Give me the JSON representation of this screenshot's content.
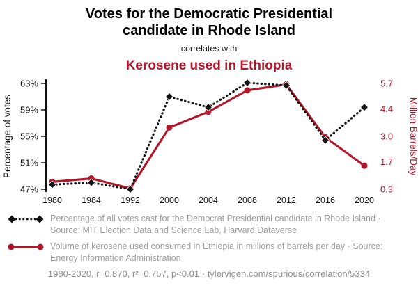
{
  "header": {
    "title_lines": [
      "Votes for the Democratic Presidential",
      "candidate in Rhode Island"
    ],
    "connector": "correlates with",
    "subtitle": "Kerosene used in Ethiopia"
  },
  "chart_data": {
    "type": "line",
    "categories": [
      "1980",
      "1984",
      "1992",
      "2000",
      "2004",
      "2008",
      "2012",
      "2016",
      "2020"
    ],
    "series": [
      {
        "name": "Percentage of all votes cast for the Democrat Presidential candidate in Rhode Island",
        "values": [
          47.7,
          48.0,
          47.0,
          61.0,
          59.4,
          63.1,
          62.7,
          54.4,
          59.4
        ],
        "axis": "left",
        "color": "#111111",
        "line_style": "dotted",
        "marker": "diamond"
      },
      {
        "name": "Volume of kerosene used consumed in Ethiopia in millions of barrels per day",
        "values": [
          0.68,
          0.85,
          0.34,
          3.45,
          4.25,
          5.35,
          5.65,
          2.95,
          1.5
        ],
        "axis": "right",
        "color": "#b2172b",
        "line_style": "solid",
        "marker": "circle"
      }
    ],
    "left_axis": {
      "label": "Percentage of votes",
      "tick_labels": [
        "63%",
        "59%",
        "55%",
        "51%",
        "47%"
      ],
      "tick_values": [
        63,
        59,
        55,
        51,
        47
      ],
      "range": [
        47,
        63
      ],
      "color": "#111111"
    },
    "right_axis": {
      "label": "Million Barrels/Day",
      "tick_labels": [
        "5.7",
        "4.4",
        "3.0",
        "1.7",
        "0.3"
      ],
      "tick_values": [
        5.7,
        4.4,
        3.0,
        1.7,
        0.3
      ],
      "range": [
        0.3,
        5.7
      ],
      "color": "#b2172b"
    },
    "grid": false,
    "legend_position": "bottom"
  },
  "legend": {
    "items": [
      {
        "label": "Percentage of all votes cast for the Democrat Presidential candidate in Rhode Island · Source: MIT Election Data and Science Lab, Harvard Dataverse",
        "marker": "black-diamond-dotted-line"
      },
      {
        "label": "Volume of kerosene used consumed in Ethiopia in millions of barrels per day · Source: Energy Information Administration",
        "marker": "red-circle-solid-line"
      }
    ]
  },
  "footer": {
    "stats": "1980-2020, r=0.870, r²=0.757, p<0.01",
    "separator": "·",
    "url": "tylervigen.com/spurious/correlation/5334"
  },
  "colors": {
    "accent_red": "#b2172b",
    "series_black": "#111111",
    "legend_gray": "#9e9e9e",
    "footer_gray": "#8c8c8c"
  }
}
